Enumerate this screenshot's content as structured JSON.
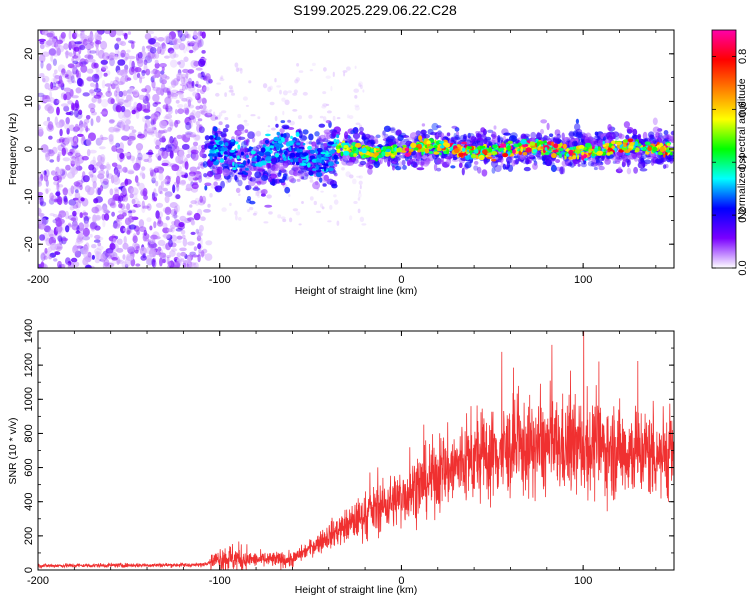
{
  "title": "S199.2025.229.06.22.C28",
  "chart_data": [
    {
      "type": "heatmap",
      "name": "spectrogram",
      "xlabel": "Height of straight line (km)",
      "ylabel": "Frequency (Hz)",
      "xlim": [
        -200,
        150
      ],
      "ylim": [
        -25,
        25
      ],
      "x_ticks": [
        -200,
        -100,
        0,
        100
      ],
      "y_ticks": [
        -20,
        -10,
        0,
        10,
        20
      ],
      "colorbar": {
        "label": "Normalized spectral amplitude",
        "range": [
          0.0,
          0.9
        ],
        "ticks": [
          0.0,
          0.2,
          0.4,
          0.6,
          0.8
        ],
        "colors": [
          "#ffffff",
          "#7a00ff",
          "#0000ff",
          "#00ffff",
          "#00ff00",
          "#ffff00",
          "#ff8000",
          "#ff0000",
          "#ff00aa"
        ]
      },
      "regions": [
        {
          "x": [
            -200,
            -108
          ],
          "freq_spread": 25,
          "amplitude": 0.08
        },
        {
          "x": [
            -108,
            -35
          ],
          "freq_center": -1,
          "freq_spread": 5,
          "amplitude": 0.25
        },
        {
          "x": [
            -35,
            150
          ],
          "freq_center": 0,
          "freq_spread": 3,
          "amplitude": 0.6
        }
      ]
    },
    {
      "type": "line",
      "name": "snr",
      "xlabel": "Height of straight line (km)",
      "ylabel": "SNR (10 * v/v)",
      "xlim": [
        -200,
        150
      ],
      "ylim": [
        0,
        1400
      ],
      "x_ticks": [
        -200,
        -100,
        0,
        100
      ],
      "y_ticks": [
        0,
        200,
        400,
        600,
        800,
        1000,
        1200,
        1400
      ],
      "color": "#f03030",
      "series_envelope": {
        "x": [
          -200,
          -110,
          -100,
          -80,
          -60,
          -40,
          -20,
          0,
          20,
          40,
          60,
          80,
          100,
          120,
          150
        ],
        "y": [
          25,
          30,
          70,
          60,
          60,
          200,
          320,
          430,
          560,
          650,
          700,
          720,
          720,
          700,
          680
        ]
      }
    }
  ]
}
